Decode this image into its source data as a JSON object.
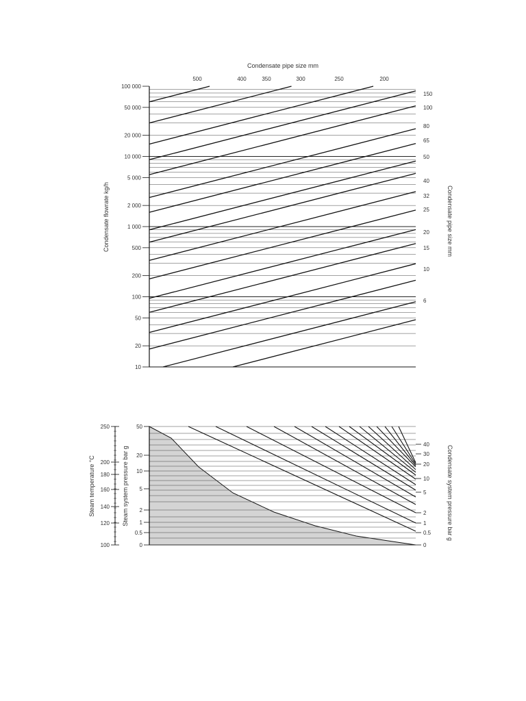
{
  "page": {
    "background": "#ffffff"
  },
  "chart_data": [
    {
      "type": "line",
      "panel": "upper",
      "title": "Condensate pipe size mm",
      "ylabel": "Condensate flowrate kg/h",
      "yscale": "log",
      "ylim": [
        10,
        100000
      ],
      "yticks": [
        100000,
        50000,
        20000,
        10000,
        5000,
        2000,
        1000,
        500,
        200,
        100,
        50,
        20,
        10
      ],
      "ytick_labels": [
        "100 000",
        "50 000",
        "20 000",
        "10 000",
        "5 000",
        "2 000",
        "1 000",
        "500",
        "200",
        "100",
        "50",
        "20",
        "10"
      ],
      "top_pipe_sizes": [
        "500",
        "400",
        "350",
        "300",
        "250",
        "200"
      ],
      "right_label": "Condensate pipe size mm",
      "right_pipe_sizes": [
        "150",
        "100",
        "80",
        "65",
        "50",
        "40",
        "32",
        "25",
        "20",
        "15",
        "10",
        "6"
      ],
      "grid": true,
      "series_count": 18
    },
    {
      "type": "line",
      "panel": "lower",
      "left_axis_1": {
        "label": "Steam temperature °C",
        "ticks": [
          "250",
          "200",
          "180",
          "160",
          "140",
          "120",
          "100"
        ]
      },
      "left_axis_2": {
        "label": "Steam system pressure bar g",
        "ticks": [
          "50",
          "20",
          "10",
          "5",
          "2",
          "1",
          "0.5",
          "0"
        ]
      },
      "right_label": "Condensate system pressure bar g",
      "right_ticks": [
        "40",
        "30",
        "20",
        "10",
        "5",
        "2",
        "1",
        "0.5",
        "0"
      ],
      "shaded_region": "below steam saturation curve",
      "shade_color": "#d4d4d4",
      "grid": true
    }
  ]
}
